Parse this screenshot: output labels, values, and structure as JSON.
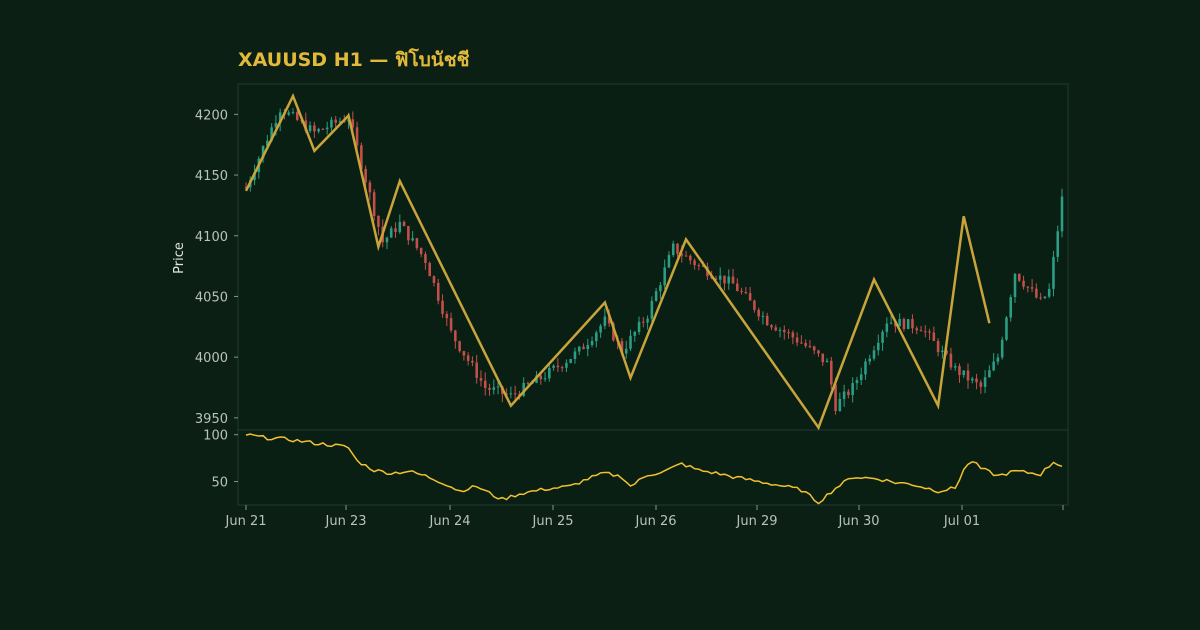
{
  "chart_data": {
    "type": "candlestick",
    "title": "XAUUSD H1 — ฟิโบนัชชี",
    "ylabel": "Price",
    "price_ylim": [
      3940,
      4225
    ],
    "price_yticks": [
      "3950",
      "4000",
      "4050",
      "4100",
      "4150",
      "4200"
    ],
    "x_tick_labels": [
      "Jun 21",
      "Jun 23",
      "Jun 24",
      "Jun 25",
      "Jun 26",
      "Jun 29",
      "Jun 30",
      "Jul 01",
      ""
    ],
    "candle_count": 192,
    "price_path": [
      [
        0,
        4140
      ],
      [
        8,
        4205
      ],
      [
        16,
        4185
      ],
      [
        24,
        4198
      ],
      [
        32,
        4095
      ],
      [
        36,
        4110
      ],
      [
        42,
        4080
      ],
      [
        48,
        4020
      ],
      [
        56,
        3975
      ],
      [
        62,
        3968
      ],
      [
        70,
        3985
      ],
      [
        78,
        4005
      ],
      [
        84,
        4030
      ],
      [
        88,
        4005
      ],
      [
        94,
        4035
      ],
      [
        100,
        4090
      ],
      [
        106,
        4075
      ],
      [
        114,
        4060
      ],
      [
        122,
        4030
      ],
      [
        130,
        4012
      ],
      [
        136,
        3995
      ],
      [
        138,
        3960
      ],
      [
        142,
        3975
      ],
      [
        150,
        4030
      ],
      [
        158,
        4025
      ],
      [
        166,
        3990
      ],
      [
        172,
        3975
      ],
      [
        176,
        4000
      ],
      [
        180,
        4070
      ],
      [
        186,
        4045
      ],
      [
        188,
        4055
      ],
      [
        191,
        4130
      ]
    ],
    "zigzag": [
      [
        0,
        4137
      ],
      [
        11,
        4215
      ],
      [
        16,
        4170
      ],
      [
        24,
        4199
      ],
      [
        31,
        4091
      ],
      [
        36,
        4145
      ],
      [
        62,
        3960
      ],
      [
        84,
        4045
      ],
      [
        90,
        3983
      ],
      [
        103,
        4097
      ],
      [
        134,
        3942
      ],
      [
        147,
        4064
      ],
      [
        162,
        3960
      ],
      [
        168,
        4116
      ],
      [
        174,
        4028
      ]
    ],
    "indicator": {
      "ylim": [
        25,
        105
      ],
      "yticks": [
        "50",
        "100"
      ],
      "path": [
        [
          0,
          100
        ],
        [
          4,
          97
        ],
        [
          10,
          95
        ],
        [
          16,
          91
        ],
        [
          22,
          88
        ],
        [
          24,
          86
        ],
        [
          26,
          72
        ],
        [
          30,
          62
        ],
        [
          34,
          59
        ],
        [
          38,
          61
        ],
        [
          42,
          56
        ],
        [
          46,
          49
        ],
        [
          50,
          40
        ],
        [
          54,
          45
        ],
        [
          58,
          35
        ],
        [
          60,
          31
        ],
        [
          64,
          37
        ],
        [
          70,
          42
        ],
        [
          76,
          45
        ],
        [
          80,
          53
        ],
        [
          84,
          59
        ],
        [
          88,
          55
        ],
        [
          90,
          45
        ],
        [
          94,
          57
        ],
        [
          98,
          61
        ],
        [
          102,
          69
        ],
        [
          106,
          62
        ],
        [
          110,
          59
        ],
        [
          114,
          55
        ],
        [
          120,
          50
        ],
        [
          126,
          45
        ],
        [
          130,
          41
        ],
        [
          134,
          28
        ],
        [
          138,
          43
        ],
        [
          142,
          55
        ],
        [
          148,
          53
        ],
        [
          152,
          49
        ],
        [
          156,
          47
        ],
        [
          162,
          40
        ],
        [
          166,
          43
        ],
        [
          168,
          63
        ],
        [
          170,
          72
        ],
        [
          172,
          64
        ],
        [
          176,
          56
        ],
        [
          180,
          61
        ],
        [
          186,
          58
        ],
        [
          189,
          71
        ],
        [
          191,
          67
        ]
      ]
    },
    "colors": {
      "background": "#0b1f14",
      "up": "#2b9e84",
      "down": "#c4504b",
      "zigzag": "#c8a43a",
      "indicator": "#f2c12e",
      "title": "#e2b93b"
    }
  }
}
